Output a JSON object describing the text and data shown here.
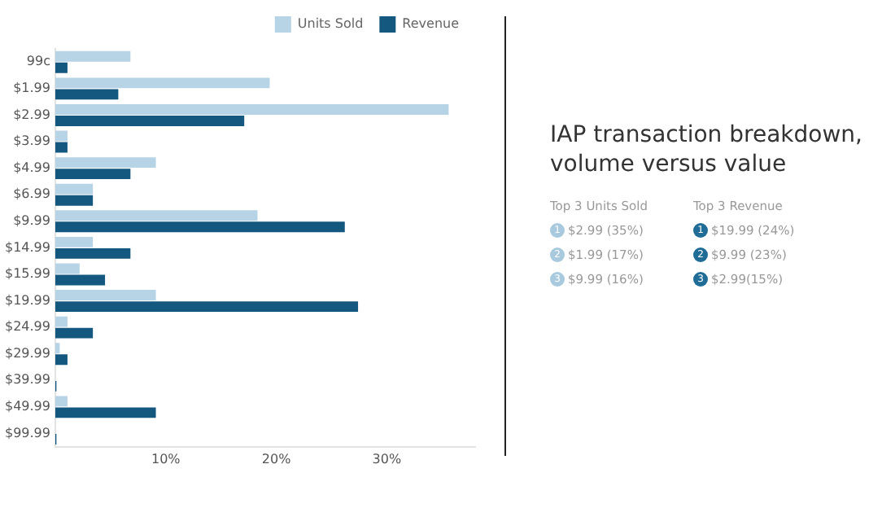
{
  "chart_data": [
    {
      "type": "bar",
      "orientation": "horizontal",
      "categories": [
        "99c",
        "$1.99",
        "$2.99",
        "$3.99",
        "$4.99",
        "$6.99",
        "$9.99",
        "$14.99",
        "$15.99",
        "$19.99",
        "$24.99",
        "$29.99",
        "$39.99",
        "$49.99",
        "$99.99"
      ],
      "series": [
        {
          "name": "Units Sold",
          "color": "#b7d3e6",
          "values": [
            6.8,
            19.4,
            35.6,
            1.1,
            9.1,
            3.4,
            18.3,
            3.4,
            2.2,
            9.1,
            1.1,
            0.4,
            0,
            1.1,
            0
          ]
        },
        {
          "name": "Revenue",
          "color": "#14577f",
          "values": [
            1.1,
            5.7,
            17.1,
            1.1,
            6.8,
            3.4,
            26.2,
            6.8,
            4.5,
            27.4,
            3.4,
            1.1,
            0.1,
            9.1,
            0.1
          ]
        }
      ],
      "xlim": [
        0,
        38
      ],
      "xticks": [
        {
          "value": 10,
          "label": "10%"
        },
        {
          "value": 20,
          "label": "20%"
        },
        {
          "value": 30,
          "label": "30%"
        }
      ],
      "grid": false,
      "legend": "top right"
    },
    {
      "type": "other",
      "title": "IAP transaction breakdown, volume versus value",
      "colors": [
        "#a9c9de",
        "#1f6d96"
      ],
      "annotations": [
        "Top 3 Units Sold",
        "1",
        "$2.99 (35%)",
        "2",
        "$1.99 (17%)",
        "3",
        "$9.99 (16%)",
        "Top 3 Revenue",
        "1",
        "$19.99 (24%)",
        "2",
        "$9.99 (23%)",
        "3",
        "$2.99(15%)"
      ]
    }
  ]
}
